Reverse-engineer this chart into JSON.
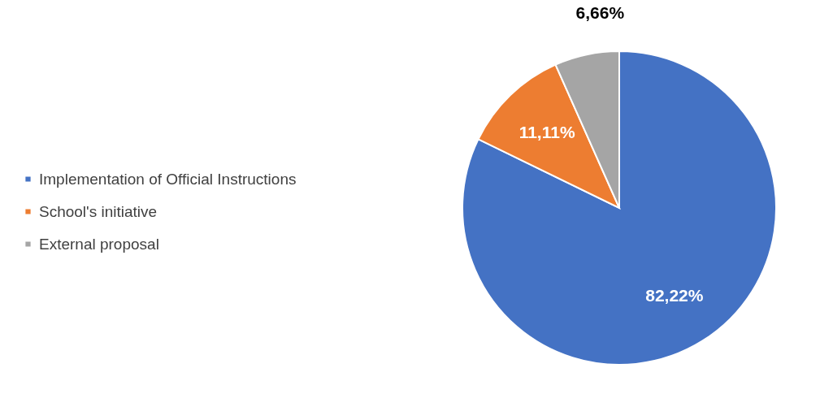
{
  "chart_data": {
    "type": "pie",
    "categories": [
      "Implementation of Official Instructions",
      "School's initiative",
      "External proposal"
    ],
    "values": [
      82.22,
      11.11,
      6.66
    ],
    "colors": [
      "#4472c4",
      "#ed7d31",
      "#a5a5a5"
    ],
    "value_labels": [
      "82,22%",
      "11,11%",
      "6,66%"
    ],
    "legend": "left"
  }
}
